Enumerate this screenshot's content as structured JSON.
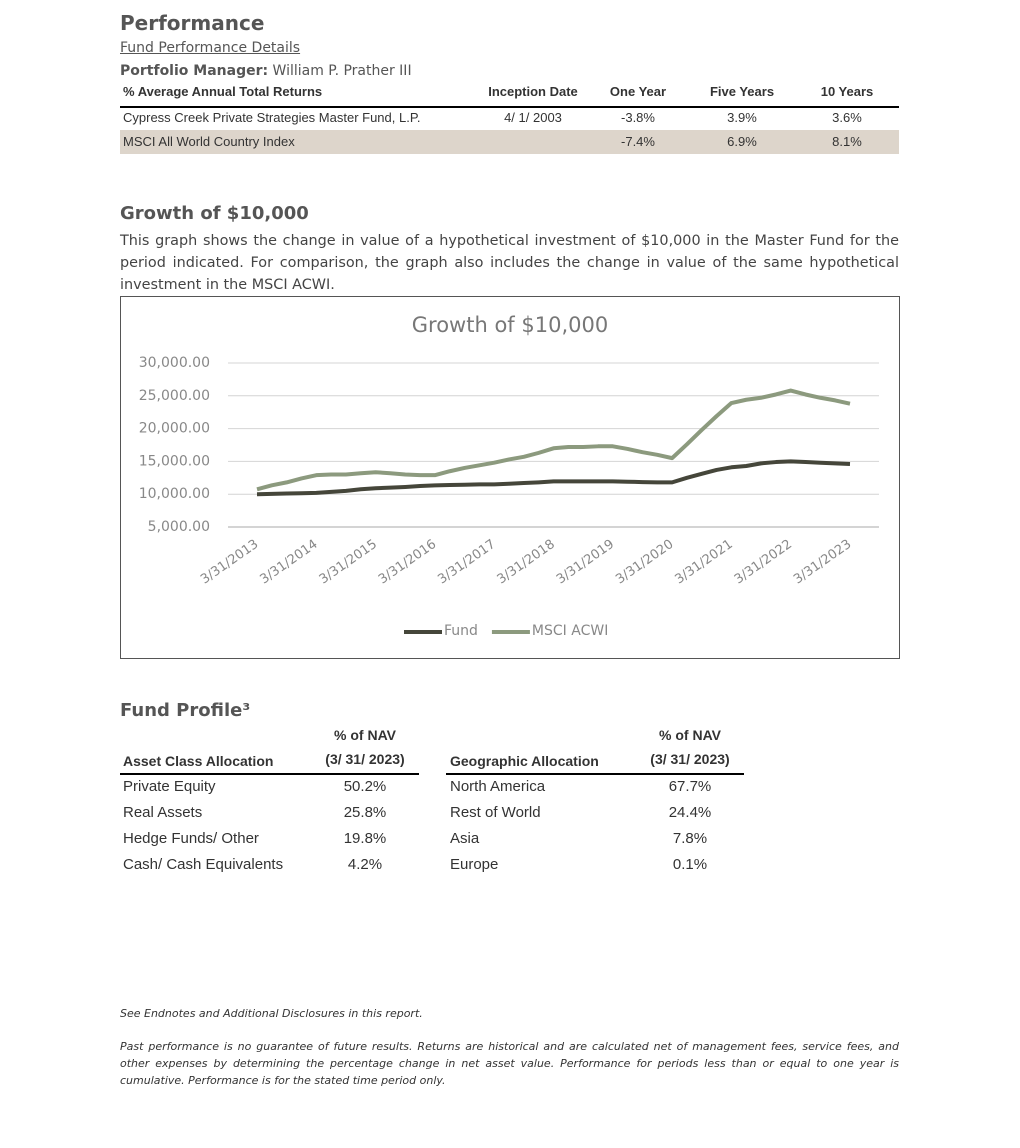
{
  "performance": {
    "title": "Performance",
    "subtitle": "Fund Performance Details",
    "manager_label": "Portfolio Manager:",
    "manager_name": "William P. Prather III",
    "table": {
      "header": [
        "% Average Annual Total Returns",
        "Inception Date",
        "One Year",
        "Five Years",
        "10 Years"
      ],
      "rows": [
        [
          "Cypress Creek Private Strategies Master Fund, L.P.",
          "4/ 1/ 2003",
          "-3.8%",
          "3.9%",
          "3.6%"
        ],
        [
          "MSCI All World Country Index",
          null,
          "-7.4%",
          "6.9%",
          "8.1%"
        ]
      ]
    }
  },
  "growth": {
    "title": "Growth of $10,000",
    "description": "This graph shows the change in value of a hypothetical investment of $10,000 in the Master Fund for the period indicated. For comparison, the graph also includes the change in value of the same hypothetical investment in the MSCI ACWI."
  },
  "chart_data": {
    "type": "line",
    "title": "Growth of $10,000",
    "categories": [
      "3/31/2013",
      null,
      null,
      null,
      "3/31/2014",
      null,
      null,
      null,
      "3/31/2015",
      null,
      null,
      null,
      "3/31/2016",
      null,
      null,
      null,
      "3/31/2017",
      null,
      null,
      null,
      "3/31/2018",
      null,
      null,
      null,
      "3/31/2019",
      null,
      null,
      null,
      "3/31/2020",
      null,
      null,
      null,
      "3/31/2021",
      null,
      null,
      null,
      "3/31/2022",
      null,
      null,
      null,
      "3/31/2023"
    ],
    "series": [
      {
        "name": "Fund",
        "color": "#45463a",
        "values": [
          10000,
          10050,
          10100,
          10150,
          10200,
          10350,
          10500,
          10750,
          10900,
          11000,
          11100,
          11250,
          11350,
          11400,
          11450,
          11500,
          11500,
          11600,
          11700,
          11800,
          11950,
          11950,
          11950,
          11950,
          11950,
          11900,
          11850,
          11800,
          11800,
          12500,
          13100,
          13700,
          14100,
          14300,
          14700,
          14900,
          15000,
          14900,
          14800,
          14700,
          14600
        ]
      },
      {
        "name": "MSCI ACWI",
        "color": "#8c9a7e",
        "values": [
          10750,
          11350,
          11800,
          12400,
          12900,
          13000,
          13000,
          13200,
          13350,
          13200,
          13000,
          12900,
          12900,
          13500,
          14000,
          14400,
          14800,
          15300,
          15700,
          16300,
          17000,
          17200,
          17200,
          17300,
          17300,
          16900,
          16400,
          16000,
          15500,
          17600,
          19800,
          21900,
          23900,
          24400,
          24700,
          25200,
          25800,
          25200,
          24700,
          24300,
          23800
        ]
      }
    ],
    "ylim": [
      5000,
      30000
    ],
    "yticks": [
      {
        "value": 5000,
        "label": "5,000.00"
      },
      {
        "value": 10000,
        "label": "10,000.00"
      },
      {
        "value": 15000,
        "label": "15,000.00"
      },
      {
        "value": 20000,
        "label": "20,000.00"
      },
      {
        "value": 25000,
        "label": "25,000.00"
      },
      {
        "value": 30000,
        "label": "30,000.00"
      }
    ],
    "grid": true,
    "legend": "bottom"
  },
  "fund_profile": {
    "title": "Fund Profile³",
    "tables": [
      {
        "header": {
          "label": "Asset Class Allocation",
          "value_line1": "% of NAV",
          "value_line2": "(3/ 31/ 2023)"
        },
        "rows": [
          [
            "Private Equity",
            "50.2%"
          ],
          [
            "Real Assets",
            "25.8%"
          ],
          [
            "Hedge Funds/ Other",
            "19.8%"
          ],
          [
            "Cash/ Cash Equivalents",
            "4.2%"
          ]
        ]
      },
      {
        "header": {
          "label": "Geographic Allocation",
          "value_line1": "% of NAV",
          "value_line2": "(3/ 31/ 2023)"
        },
        "rows": [
          [
            "North America",
            "67.7%"
          ],
          [
            "Rest of World",
            "24.4%"
          ],
          [
            "Asia",
            "7.8%"
          ],
          [
            "Europe",
            "0.1%"
          ]
        ]
      }
    ]
  },
  "footnotes": [
    "See Endnotes and Additional Disclosures in this report.",
    "Past performance is no guarantee of future results. Returns are historical and are calculated net of management fees, service fees, and other expenses by determining the percentage change in net asset value. Performance for periods less than or equal to one year is cumulative. Performance is for the stated time period only."
  ]
}
